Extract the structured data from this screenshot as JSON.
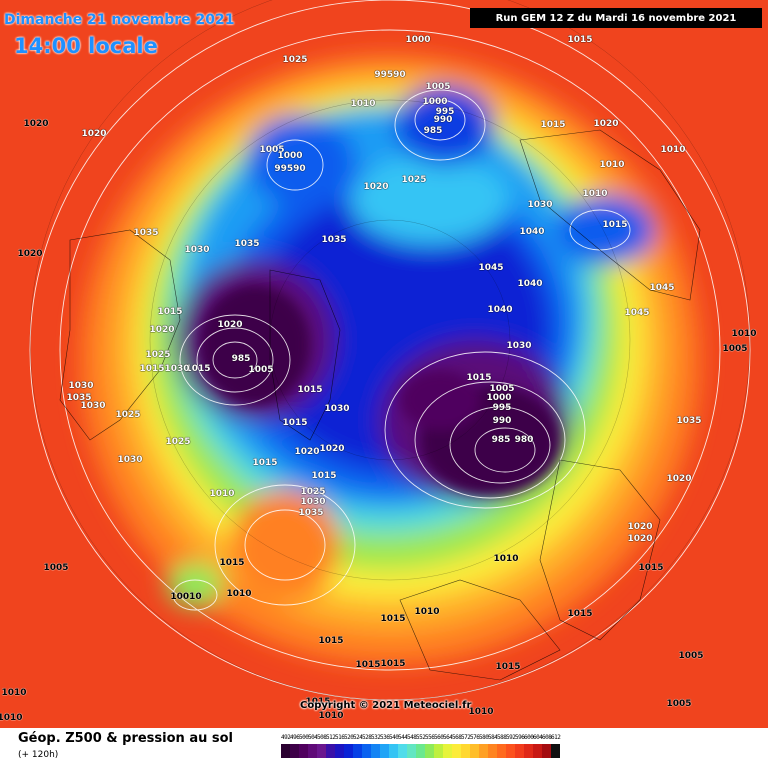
{
  "header": {
    "date_line": "Dimanche 21 novembre 2021",
    "time_line": "14:00 locale",
    "run_info": "Run GEM 12 Z du Mardi 16 novembre 2021"
  },
  "copyright": "Copyright © 2021 Meteociel.fr",
  "legend": {
    "title": "Géop. Z500 & pression au sol",
    "subtitle": "(+ 120h)",
    "scale": [
      {
        "v": "492",
        "c": "#2a0030"
      },
      {
        "v": "496",
        "c": "#3d0048"
      },
      {
        "v": "500",
        "c": "#50005e"
      },
      {
        "v": "504",
        "c": "#5f0a78"
      },
      {
        "v": "508",
        "c": "#6a168e"
      },
      {
        "v": "512",
        "c": "#3a10a8"
      },
      {
        "v": "516",
        "c": "#1c14c2"
      },
      {
        "v": "520",
        "c": "#0a22d6"
      },
      {
        "v": "524",
        "c": "#0640e6"
      },
      {
        "v": "528",
        "c": "#0a62f0"
      },
      {
        "v": "532",
        "c": "#1484f4"
      },
      {
        "v": "536",
        "c": "#20a4f6"
      },
      {
        "v": "540",
        "c": "#34c4f4"
      },
      {
        "v": "544",
        "c": "#50dcea"
      },
      {
        "v": "548",
        "c": "#62e6c2"
      },
      {
        "v": "552",
        "c": "#6ae88e"
      },
      {
        "v": "556",
        "c": "#8eea5a"
      },
      {
        "v": "560",
        "c": "#bef03e"
      },
      {
        "v": "564",
        "c": "#e6f43a"
      },
      {
        "v": "568",
        "c": "#fcec3a"
      },
      {
        "v": "572",
        "c": "#ffd830"
      },
      {
        "v": "576",
        "c": "#ffbe2a"
      },
      {
        "v": "580",
        "c": "#ffa024"
      },
      {
        "v": "584",
        "c": "#ff8420"
      },
      {
        "v": "588",
        "c": "#ff6a1e"
      },
      {
        "v": "592",
        "c": "#fc521e"
      },
      {
        "v": "596",
        "c": "#f23c1c"
      },
      {
        "v": "600",
        "c": "#e02818"
      },
      {
        "v": "604",
        "c": "#c81814"
      },
      {
        "v": "608",
        "c": "#a40c10"
      },
      {
        "v": "612",
        "c": "#101010"
      }
    ]
  },
  "pressure_labels": [
    {
      "t": "1000"
    },
    {
      "t": "1015"
    },
    {
      "t": "1025"
    },
    {
      "t": "99590"
    },
    {
      "t": "1005"
    },
    {
      "t": "1000"
    },
    {
      "t": "995"
    },
    {
      "t": "990"
    },
    {
      "t": "985"
    },
    {
      "t": "1010"
    },
    {
      "t": "1020"
    },
    {
      "t": "1020"
    },
    {
      "t": "1015"
    },
    {
      "t": "1020"
    },
    {
      "t": "1005"
    },
    {
      "t": "1000"
    },
    {
      "t": "99590"
    },
    {
      "t": "1020"
    },
    {
      "t": "1025"
    },
    {
      "t": "1010"
    },
    {
      "t": "1010"
    },
    {
      "t": "1010"
    },
    {
      "t": "1030"
    },
    {
      "t": "1015"
    },
    {
      "t": "1035"
    },
    {
      "t": "1030"
    },
    {
      "t": "1035"
    },
    {
      "t": "1035"
    },
    {
      "t": "1040"
    },
    {
      "t": "1020"
    },
    {
      "t": "1045"
    },
    {
      "t": "1040"
    },
    {
      "t": "1045"
    },
    {
      "t": "1015"
    },
    {
      "t": "1040"
    },
    {
      "t": "1045"
    },
    {
      "t": "1020"
    },
    {
      "t": "1020"
    },
    {
      "t": "1010"
    },
    {
      "t": "1005"
    },
    {
      "t": "1025"
    },
    {
      "t": "1030"
    },
    {
      "t": "1035"
    },
    {
      "t": "1015"
    },
    {
      "t": "985"
    },
    {
      "t": "1005"
    },
    {
      "t": "1015"
    },
    {
      "t": "1030"
    },
    {
      "t": "1015"
    },
    {
      "t": "1015"
    },
    {
      "t": "1030"
    },
    {
      "t": "1005"
    },
    {
      "t": "1000"
    },
    {
      "t": "995"
    },
    {
      "t": "990"
    },
    {
      "t": "985"
    },
    {
      "t": "980"
    },
    {
      "t": "1035"
    },
    {
      "t": "1030"
    },
    {
      "t": "1030"
    },
    {
      "t": "1025"
    },
    {
      "t": "1025"
    },
    {
      "t": "1030"
    },
    {
      "t": "1015"
    },
    {
      "t": "1020"
    },
    {
      "t": "1015"
    },
    {
      "t": "1020"
    },
    {
      "t": "1025"
    },
    {
      "t": "1030"
    },
    {
      "t": "1035"
    },
    {
      "t": "1015"
    },
    {
      "t": "1010"
    },
    {
      "t": "1020"
    },
    {
      "t": "1020"
    },
    {
      "t": "1020"
    },
    {
      "t": "1015"
    },
    {
      "t": "1015"
    },
    {
      "t": "1005"
    },
    {
      "t": "10010"
    },
    {
      "t": "1010"
    },
    {
      "t": "1010"
    },
    {
      "t": "1015"
    },
    {
      "t": "1010"
    },
    {
      "t": "1015"
    },
    {
      "t": "1015"
    },
    {
      "t": "1015"
    },
    {
      "t": "1015"
    },
    {
      "t": "1015"
    },
    {
      "t": "1010"
    },
    {
      "t": "1005"
    },
    {
      "t": "1010"
    },
    {
      "t": "1010"
    },
    {
      "t": "1005"
    },
    {
      "t": "1015"
    },
    {
      "t": "1010"
    }
  ]
}
